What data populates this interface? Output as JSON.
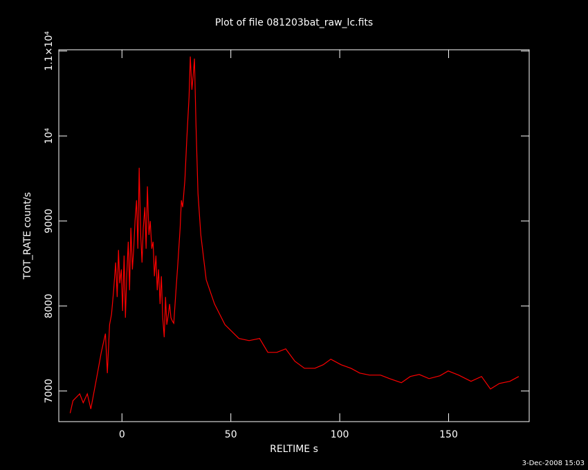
{
  "chart_data": {
    "type": "line",
    "title": "Plot of file 081203bat_raw_lc.fits",
    "x_label": "RELTIME  s",
    "y_label": "TOT_RATE  count/s",
    "timestamp": "3-Dec-2008 15:03",
    "xlim": [
      -29,
      187
    ],
    "ylim": [
      6640,
      11015
    ],
    "xticks": [
      0,
      50,
      100,
      150
    ],
    "yticks": [
      7000,
      8000,
      9000,
      {
        "value": 10000,
        "label": "10⁴"
      },
      {
        "value": 11000,
        "label": "1.1×10⁴"
      }
    ],
    "background": "#000000",
    "foreground": "#ffffff",
    "x": [
      -23.8,
      -22.5,
      -19.4,
      -17.8,
      -15.9,
      -14.3,
      -11.7,
      -9.5,
      -7.6,
      -6.7,
      -5.7,
      -4.8,
      -3.8,
      -2.9,
      -2.2,
      -1.6,
      -1.0,
      -0.3,
      0.3,
      1.0,
      1.6,
      2.2,
      2.9,
      3.5,
      4.1,
      4.8,
      5.4,
      6.0,
      6.7,
      7.3,
      7.9,
      8.6,
      9.2,
      9.8,
      10.5,
      11.1,
      11.7,
      12.4,
      13.0,
      13.7,
      14.3,
      14.9,
      15.6,
      16.2,
      16.8,
      17.5,
      18.1,
      18.7,
      19.4,
      20.0,
      20.6,
      21.3,
      21.9,
      22.5,
      23.2,
      23.8,
      24.8,
      25.7,
      26.7,
      27.3,
      27.9,
      28.9,
      29.8,
      30.8,
      31.4,
      32.1,
      32.7,
      33.3,
      34.0,
      34.9,
      36.2,
      38.7,
      42.5,
      47.3,
      53.7,
      58.4,
      63.2,
      67.0,
      71.1,
      75.2,
      79.4,
      83.8,
      88.6,
      92.4,
      95.9,
      100.6,
      105.1,
      109.2,
      113.7,
      118.7,
      122.9,
      128.3,
      132.4,
      136.5,
      141.0,
      146.0,
      149.8,
      154.6,
      160.3,
      165.1,
      169.2,
      173.3,
      178.1,
      182.2
    ],
    "series": [
      {
        "color": "#ff0000",
        "values": [
          6740,
          6886,
          6967,
          6862,
          6967,
          6789,
          7146,
          7455,
          7675,
          7211,
          7780,
          7902,
          8187,
          8512,
          8106,
          8659,
          8268,
          8431,
          7943,
          8593,
          7862,
          8350,
          8756,
          8187,
          8919,
          8431,
          8675,
          9000,
          9244,
          8675,
          9626,
          8837,
          8512,
          8919,
          9163,
          8675,
          9407,
          8837,
          9000,
          8675,
          8756,
          8350,
          8593,
          8187,
          8431,
          8024,
          8350,
          7862,
          7634,
          8106,
          7780,
          7902,
          8024,
          7862,
          7821,
          7797,
          8187,
          8512,
          8919,
          9244,
          9163,
          9488,
          9976,
          10463,
          10935,
          10545,
          10707,
          10911,
          10138,
          9325,
          8837,
          8309,
          8024,
          7780,
          7618,
          7593,
          7618,
          7455,
          7455,
          7496,
          7350,
          7268,
          7268,
          7309,
          7374,
          7309,
          7268,
          7211,
          7187,
          7187,
          7146,
          7098,
          7171,
          7195,
          7146,
          7179,
          7236,
          7187,
          7114,
          7171,
          7024,
          7089,
          7114,
          7171
        ]
      }
    ]
  }
}
